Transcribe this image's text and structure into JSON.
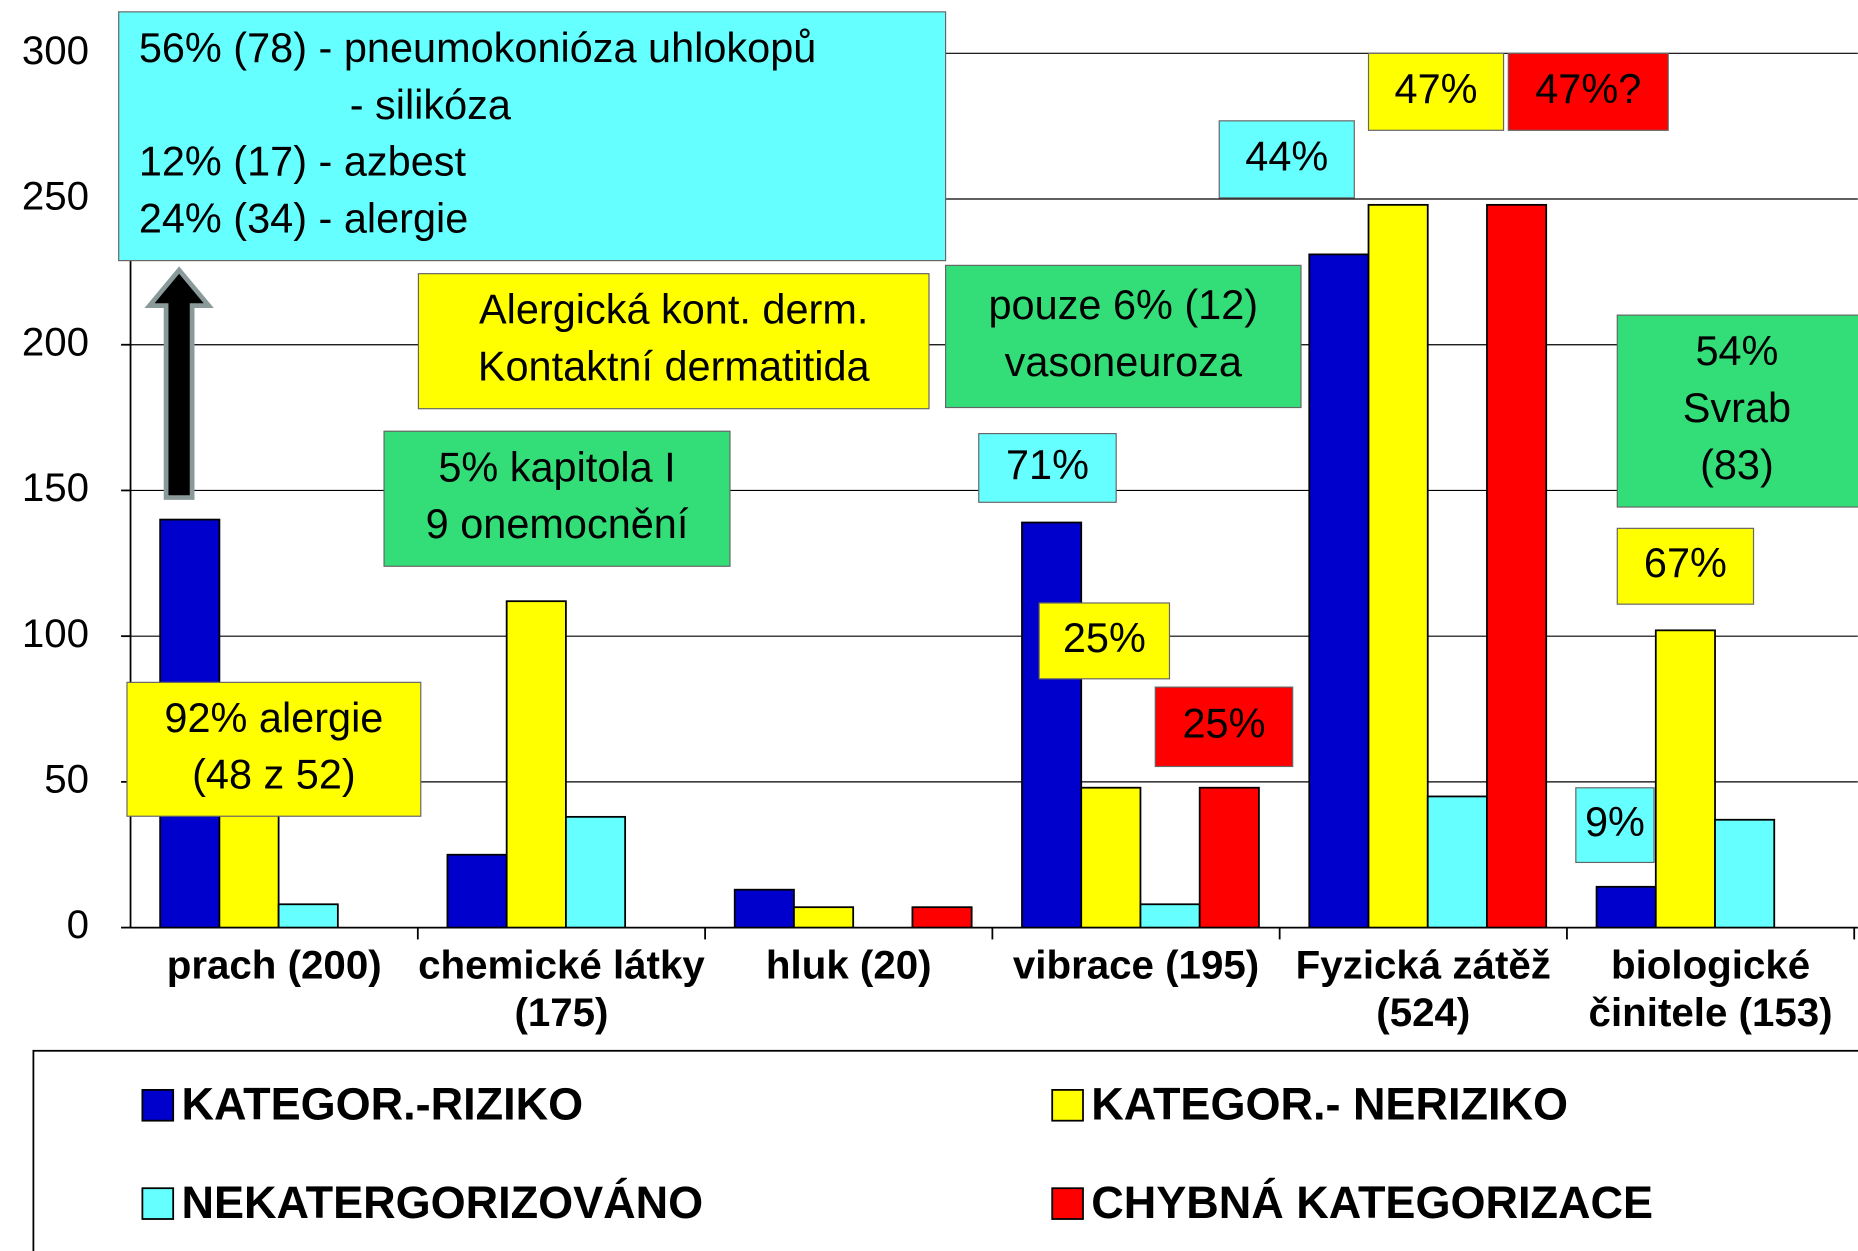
{
  "chart_data": {
    "type": "bar",
    "categories": [
      "prach (200)",
      "chemické látky (175)",
      "hluk (20)",
      "vibrace (195)",
      "Fyzická zátěž (524)",
      "biologické činitele (153)"
    ],
    "series": [
      {
        "name": "KATEGOR.-RIZIKO",
        "color": "#0000cc",
        "values": [
          140,
          25,
          13,
          139,
          231,
          14
        ]
      },
      {
        "name": "KATEGOR.- NERIZIKO",
        "color": "#ffff00",
        "values": [
          52,
          112,
          7,
          48,
          248,
          102
        ]
      },
      {
        "name": "NEKATERGORIZOVÁNO",
        "color": "#66ffff",
        "values": [
          8,
          38,
          0,
          8,
          45,
          37
        ]
      },
      {
        "name": "CHYBNÁ KATEGORIZACE",
        "color": "#ff0000",
        "values": [
          0,
          0,
          7,
          48,
          248,
          0
        ]
      }
    ],
    "ylim": [
      0,
      300
    ],
    "yticks": [
      0,
      50,
      100,
      150,
      200,
      250,
      300
    ],
    "grid": true,
    "annotations": [
      {
        "lines": [
          "56% (78) - pneumokonióza uhlokopů",
          "- silikóza",
          "12% (17) - azbest",
          "24% (34) - alergie"
        ],
        "color": "#66ffff"
      },
      {
        "lines": [
          "Alergická kont. derm.",
          "Kontaktní dermatitida"
        ],
        "color": "#ffff00"
      },
      {
        "lines": [
          "5% kapitola I",
          "9 onemocnění"
        ],
        "color": "#33dd77"
      },
      {
        "lines": [
          "pouze 6% (12)",
          "vasoneuroza"
        ],
        "color": "#33dd77"
      },
      {
        "lines": [
          "71%"
        ],
        "color": "#66ffff"
      },
      {
        "lines": [
          "92% alergie",
          "(48 z 52)"
        ],
        "color": "#ffff00"
      },
      {
        "lines": [
          "25%"
        ],
        "color": "#ffff00"
      },
      {
        "lines": [
          "25%"
        ],
        "color": "#ff0000"
      },
      {
        "lines": [
          "44%"
        ],
        "color": "#66ffff"
      },
      {
        "lines": [
          "47%"
        ],
        "color": "#ffff00"
      },
      {
        "lines": [
          "47%?"
        ],
        "color": "#ff0000"
      },
      {
        "lines": [
          "54%",
          "Svrab",
          "(83)"
        ],
        "color": "#33dd77"
      },
      {
        "lines": [
          "67%"
        ],
        "color": "#ffff00"
      },
      {
        "lines": [
          "9%"
        ],
        "color": "#66ffff"
      }
    ]
  }
}
